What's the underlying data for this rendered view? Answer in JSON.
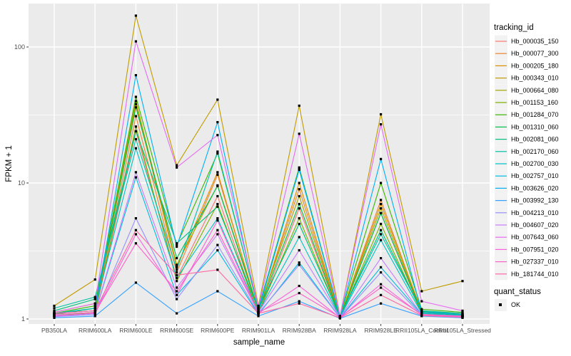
{
  "figure": {
    "background": "#FFFFFF",
    "panel_color": "#EBEBEB",
    "grid_color": "#FFFFFF",
    "tick_mark_color": "#333333",
    "axis_text_color": "#4D4D4D",
    "title_color": "#000000",
    "legend_key_fill": "#F2F2F2",
    "point_color": "#000000"
  },
  "chart_data": {
    "type": "line",
    "title": "",
    "xlabel": "sample_name",
    "ylabel": "FPKM + 1",
    "y_scale": "log10",
    "y_ticks": [
      1,
      10,
      100
    ],
    "y_tick_labels": [
      "1",
      "10",
      "100"
    ],
    "y_minor_ticks": [
      3.1623,
      31.623
    ],
    "ylim": [
      0.93,
      210
    ],
    "grid": true,
    "legend_position": "right",
    "categories": [
      "PB350LA",
      "RRIM600LA",
      "RRIM600LE",
      "RRIM600SE",
      "RRIM600PE",
      "RRIM901LA",
      "RRIM928BA",
      "RRIM928LA",
      "RRIM928LE",
      "RRII105LA_Control",
      "RRII105LA_Stressed"
    ],
    "series": [
      {
        "name": "Hb_000035_150",
        "color": "#F8766D",
        "values": [
          1.05,
          1.1,
          24,
          2.0,
          8.0,
          1.1,
          6.5,
          1.02,
          6.0,
          1.1,
          1.05
        ]
      },
      {
        "name": "Hb_000077_300",
        "color": "#EA8331",
        "values": [
          1.1,
          1.15,
          31,
          2.2,
          11.5,
          1.15,
          9.0,
          1.03,
          7.5,
          1.12,
          1.06
        ]
      },
      {
        "name": "Hb_000205_180",
        "color": "#D89000",
        "values": [
          1.08,
          1.2,
          38,
          2.4,
          12.0,
          1.12,
          10.0,
          1.04,
          7.0,
          1.15,
          1.08
        ]
      },
      {
        "name": "Hb_000343_010",
        "color": "#C09B00",
        "values": [
          1.25,
          1.95,
          170,
          13.5,
          41,
          1.25,
          37,
          1.05,
          32,
          1.6,
          1.9
        ]
      },
      {
        "name": "Hb_000664_080",
        "color": "#A3A500",
        "values": [
          1.12,
          1.3,
          40,
          2.5,
          9.6,
          1.18,
          8.0,
          1.04,
          6.5,
          1.13,
          1.1
        ]
      },
      {
        "name": "Hb_001153_160",
        "color": "#7CAE00",
        "values": [
          1.06,
          1.12,
          26,
          1.9,
          7.0,
          1.1,
          5.5,
          1.02,
          5.0,
          1.1,
          1.05
        ]
      },
      {
        "name": "Hb_001284_070",
        "color": "#39B600",
        "values": [
          1.1,
          1.25,
          43,
          3.5,
          16.5,
          1.2,
          13.0,
          1.05,
          10.0,
          1.18,
          1.12
        ]
      },
      {
        "name": "Hb_001310_060",
        "color": "#00BB4E",
        "values": [
          1.08,
          1.2,
          36,
          2.8,
          9.5,
          1.15,
          7.0,
          1.03,
          6.0,
          1.12,
          1.07
        ]
      },
      {
        "name": "Hb_002081_060",
        "color": "#00BF7D",
        "values": [
          1.15,
          1.4,
          24,
          3.6,
          6.7,
          1.18,
          5.0,
          1.04,
          4.5,
          1.14,
          1.08
        ]
      },
      {
        "name": "Hb_002170_060",
        "color": "#00C1A3",
        "values": [
          1.2,
          1.45,
          21,
          2.3,
          17.0,
          1.2,
          12.5,
          1.05,
          4.2,
          1.15,
          1.1
        ]
      },
      {
        "name": "Hb_002700_030",
        "color": "#00BFC4",
        "values": [
          1.1,
          1.2,
          18,
          2.0,
          5.5,
          1.12,
          4.0,
          1.03,
          3.8,
          1.1,
          1.06
        ]
      },
      {
        "name": "Hb_002757_010",
        "color": "#00BAE0",
        "values": [
          1.05,
          1.1,
          11,
          1.5,
          3.2,
          1.08,
          2.6,
          1.02,
          2.4,
          1.08,
          1.04
        ]
      },
      {
        "name": "Hb_003626_020",
        "color": "#00B0F6",
        "values": [
          1.1,
          1.15,
          62,
          3.4,
          28,
          1.15,
          12.7,
          1.04,
          15.0,
          1.12,
          1.08
        ]
      },
      {
        "name": "Hb_003992_130",
        "color": "#35A2FF",
        "values": [
          1.02,
          1.05,
          1.85,
          1.1,
          1.6,
          1.05,
          1.35,
          1.01,
          1.3,
          1.05,
          1.02
        ]
      },
      {
        "name": "Hb_004213_010",
        "color": "#9590FF",
        "values": [
          1.04,
          1.08,
          5.5,
          1.4,
          3.5,
          1.1,
          2.5,
          1.02,
          2.2,
          1.06,
          1.03
        ]
      },
      {
        "name": "Hb_004607_020",
        "color": "#C77CFF",
        "values": [
          1.06,
          1.1,
          12,
          1.7,
          4.2,
          1.12,
          3.2,
          1.03,
          2.8,
          1.08,
          1.05
        ]
      },
      {
        "name": "Hb_007643_060",
        "color": "#E76BF3",
        "values": [
          1.12,
          1.3,
          110,
          13.0,
          22.5,
          1.22,
          23,
          1.05,
          27,
          1.35,
          1.15
        ]
      },
      {
        "name": "Hb_007951_020",
        "color": "#FA62DB",
        "values": [
          1.05,
          1.1,
          4.2,
          1.5,
          5.3,
          1.1,
          1.75,
          1.02,
          1.8,
          1.07,
          1.04
        ]
      },
      {
        "name": "Hb_027337_010",
        "color": "#FF61C9",
        "values": [
          1.08,
          1.12,
          3.6,
          1.6,
          4.5,
          1.12,
          1.55,
          1.03,
          1.7,
          1.08,
          1.05
        ]
      },
      {
        "name": "Hb_181744_010",
        "color": "#FF67A4",
        "values": [
          1.1,
          1.15,
          4.5,
          2.1,
          2.3,
          1.1,
          1.3,
          1.02,
          1.5,
          1.06,
          1.03
        ]
      }
    ],
    "legend": {
      "color_title": "tracking_id",
      "shape_title": "quant_status",
      "shape_items": [
        {
          "label": "OK"
        }
      ]
    }
  }
}
